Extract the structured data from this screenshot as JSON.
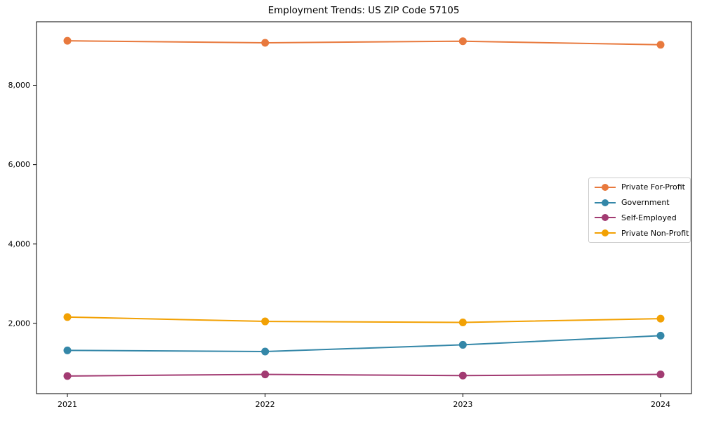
{
  "title": "Employment Trends: US ZIP Code 57105",
  "chart_data": {
    "type": "line",
    "x": [
      2021,
      2022,
      2023,
      2024
    ],
    "x_tick_labels": [
      "2021",
      "2022",
      "2023",
      "2024"
    ],
    "y_ticks": [
      2000,
      4000,
      6000,
      8000
    ],
    "y_tick_labels": [
      "2,000",
      "4,000",
      "6,000",
      "8,000"
    ],
    "ylim": [
      230,
      9600
    ],
    "xlabel": "",
    "ylabel": "",
    "grid": false,
    "legend_position": "center-right",
    "series": [
      {
        "name": "Private For-Profit",
        "color": "#E8793D",
        "values": [
          9120,
          9070,
          9110,
          9020
        ]
      },
      {
        "name": "Government",
        "color": "#3487A8",
        "values": [
          1320,
          1290,
          1460,
          1690
        ]
      },
      {
        "name": "Self-Employed",
        "color": "#A23B72",
        "values": [
          675,
          715,
          685,
          715
        ]
      },
      {
        "name": "Private Non-Profit",
        "color": "#F2A104",
        "values": [
          2160,
          2050,
          2025,
          2120
        ]
      }
    ]
  }
}
